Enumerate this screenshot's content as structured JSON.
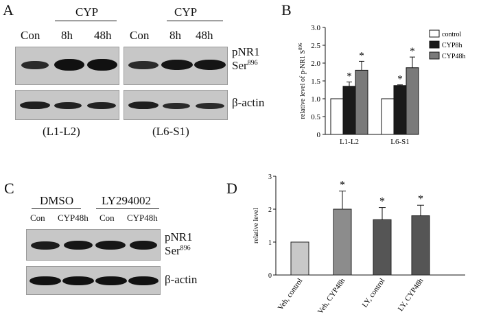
{
  "panelA": {
    "letter": "A",
    "group_labels": [
      "CYP",
      "CYP"
    ],
    "lane_labels_left": [
      "Con",
      "8h",
      "48h"
    ],
    "lane_labels_right": [
      "Con",
      "8h",
      "48h"
    ],
    "blot1_label": "pNR1",
    "blot1_label_line2": "Ser",
    "blot1_sup": "896",
    "blot2_label": "β-actin",
    "region_left": "(L1-L2)",
    "region_right": "(L6-S1)"
  },
  "panelC": {
    "letter": "C",
    "group_labels": [
      "DMSO",
      "LY294002"
    ],
    "lane_labels": [
      "Con",
      "CYP48h",
      "Con",
      "CYP48h"
    ],
    "blot1_label": "pNR1",
    "blot1_label_line2": "Ser",
    "blot1_sup": "896",
    "blot2_label": "β-actin"
  },
  "panelB": {
    "letter": "B",
    "ylabel": "relative level of p-NR1 S",
    "ylabel_sup": "896",
    "yticks": [
      "0",
      "0.5",
      "1.0",
      "1.5",
      "2.0",
      "2.5",
      "3.0"
    ],
    "star": "*"
  },
  "panelD": {
    "letter": "D",
    "ylabel": "relative level",
    "yticks": [
      "0",
      "1",
      "2",
      "3"
    ],
    "star": "*"
  },
  "colors": {
    "white_bar": "#ffffff",
    "black_bar": "#1a1a1a",
    "gray_bar": "#7a7a7a",
    "light_bar": "#c8c8c8",
    "mid_bar": "#8c8c8c",
    "dark_bar": "#555555"
  },
  "chart_data": [
    {
      "type": "bar",
      "categories": [
        "L1-L2",
        "L6-S1"
      ],
      "series": [
        {
          "name": "control",
          "values": [
            1.0,
            1.0
          ],
          "errors": [
            0,
            0
          ],
          "significant": [
            false,
            false
          ]
        },
        {
          "name": "CYP8h",
          "values": [
            1.35,
            1.37
          ],
          "errors": [
            0.12,
            0.02
          ],
          "significant": [
            true,
            true
          ]
        },
        {
          "name": "CYP48h",
          "values": [
            1.8,
            1.87
          ],
          "errors": [
            0.25,
            0.3
          ],
          "significant": [
            true,
            true
          ]
        }
      ],
      "ylim": [
        0,
        3.0
      ],
      "legend": "right"
    },
    {
      "type": "bar",
      "categories": [
        "Veh, control",
        "Veh, CYP48h",
        "LY, control",
        "LY, CYP48h"
      ],
      "values": [
        1.0,
        2.0,
        1.68,
        1.8
      ],
      "errors": [
        0,
        0.55,
        0.37,
        0.32
      ],
      "significant": [
        false,
        true,
        true,
        true
      ],
      "ylim": [
        0,
        3
      ]
    }
  ]
}
